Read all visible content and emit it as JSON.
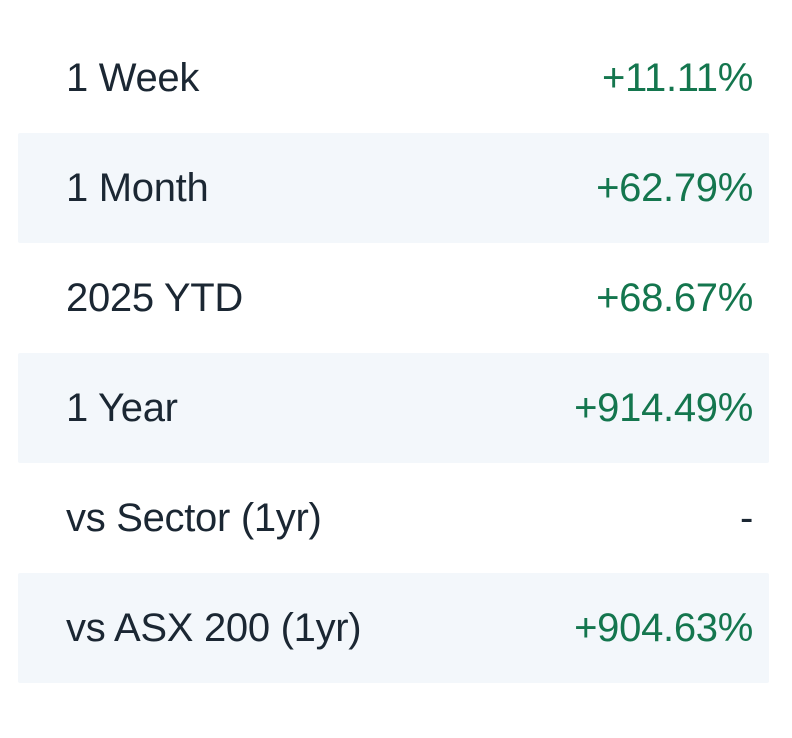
{
  "table": {
    "rows": [
      {
        "label": "1 Week",
        "value": "+11.11%",
        "tone": "positive"
      },
      {
        "label": "1 Month",
        "value": "+62.79%",
        "tone": "positive"
      },
      {
        "label": "2025 YTD",
        "value": "+68.67%",
        "tone": "positive"
      },
      {
        "label": "1 Year",
        "value": "+914.49%",
        "tone": "positive"
      },
      {
        "label": "vs Sector (1yr)",
        "value": "-",
        "tone": "neutral"
      },
      {
        "label": "vs ASX 200 (1yr)",
        "value": "+904.63%",
        "tone": "positive"
      }
    ]
  },
  "colors": {
    "positive": "#14764e",
    "text": "#1b2733",
    "row_alt_background": "#f3f7fb",
    "page_background": "#ffffff"
  }
}
